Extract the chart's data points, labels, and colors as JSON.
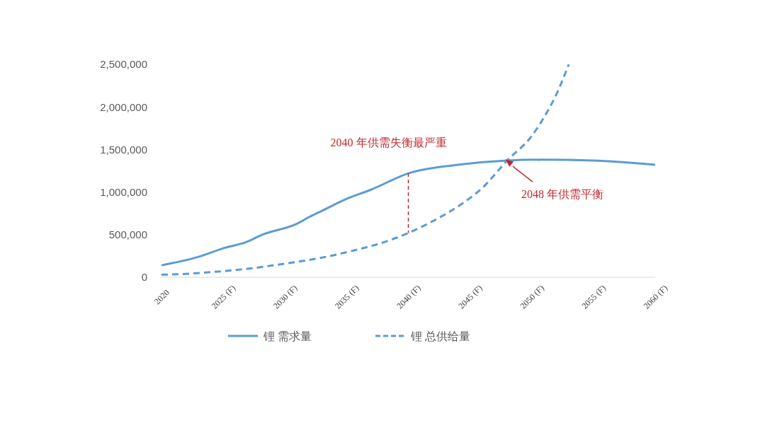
{
  "chart_data": {
    "type": "line",
    "xlim": [
      2020,
      2060
    ],
    "xticks": [
      {
        "value": 2020,
        "label": "2020"
      },
      {
        "value": 2025,
        "label": "2025 (F)"
      },
      {
        "value": 2030,
        "label": "2030 (F)"
      },
      {
        "value": 2035,
        "label": "2035 (F)"
      },
      {
        "value": 2040,
        "label": "2040 (F)"
      },
      {
        "value": 2045,
        "label": "2045 (F)"
      },
      {
        "value": 2050,
        "label": "2050 (F)"
      },
      {
        "value": 2055,
        "label": "2055 (F)"
      },
      {
        "value": 2060,
        "label": "2060 (F)"
      }
    ],
    "ylim": [
      0,
      2500000
    ],
    "yticks": [
      {
        "value": 0,
        "label": "0"
      },
      {
        "value": 500000,
        "label": "500,000"
      },
      {
        "value": 1000000,
        "label": "1,000,000"
      },
      {
        "value": 1500000,
        "label": "1,500,000"
      },
      {
        "value": 2000000,
        "label": "2,000,000"
      },
      {
        "value": 2500000,
        "label": "2,500,000"
      }
    ],
    "grid": false,
    "legend": "bottom",
    "marker": "none",
    "series": [
      {
        "name": "锂 需求量",
        "color": "#5b9bd5",
        "line_style": "solid",
        "x": [
          2020,
          2023,
          2025,
          2027,
          2028,
          2031,
          2032,
          2033,
          2035,
          2037,
          2040,
          2044,
          2048,
          2050,
          2055,
          2060
        ],
        "values": [
          140000,
          240000,
          340000,
          420000,
          490000,
          630000,
          710000,
          780000,
          920000,
          1030000,
          1220000,
          1320000,
          1370000,
          1380000,
          1370000,
          1320000
        ]
      },
      {
        "name": "锂 总供给量",
        "color": "#5b9bd5",
        "line_style": "dashed",
        "x": [
          2020,
          2022,
          2024,
          2027,
          2030,
          2033,
          2036,
          2038,
          2040,
          2042,
          2044,
          2046,
          2048,
          2050,
          2051,
          2052,
          2053
        ],
        "values": [
          30000,
          40000,
          60000,
          100000,
          160000,
          230000,
          330000,
          410000,
          520000,
          660000,
          830000,
          1050000,
          1370000,
          1660000,
          1880000,
          2150000,
          2500000
        ]
      }
    ],
    "annotations": [
      {
        "text": "2040 年供需失衡最严重",
        "x": 2040,
        "y": 1220000
      },
      {
        "text": "2048 年供需平衡",
        "x": 2048,
        "y": 1370000
      }
    ]
  }
}
